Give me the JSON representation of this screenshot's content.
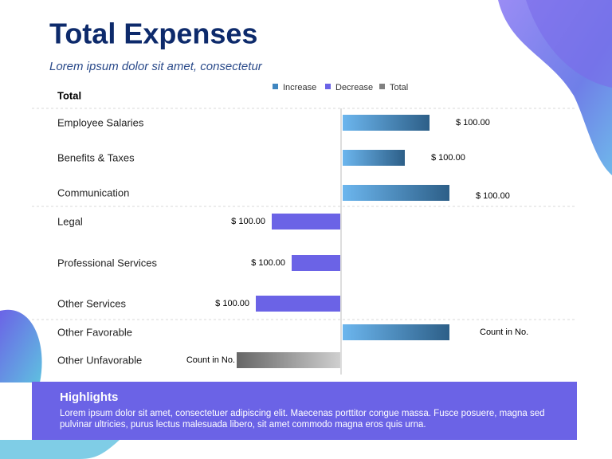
{
  "header": {
    "title": "Total Expenses",
    "subtitle": "Lorem ipsum dolor sit amet, consectetur"
  },
  "chart_data": {
    "type": "bar",
    "orientation": "horizontal",
    "group_label": "Total",
    "legend": [
      {
        "name": "Increase",
        "color": "#3f86c0"
      },
      {
        "name": "Decrease",
        "color": "#6b63e6"
      },
      {
        "name": "Total",
        "color": "#808080"
      }
    ],
    "categories": [
      "Employee Salaries",
      "Benefits & Taxes",
      "Communication",
      "Legal",
      "Professional Services",
      "Other Services",
      "Other Favorable",
      "Other Unfavorable"
    ],
    "values": [
      109,
      78,
      134,
      -86,
      -61,
      -106,
      134,
      -130
    ],
    "kinds": [
      0,
      0,
      0,
      1,
      1,
      1,
      0,
      2
    ],
    "annotations": [
      "$ 100.00",
      "$ 100.00",
      "$ 100.00",
      "$ 100.00",
      "$ 100.00",
      "$ 100.00",
      "Count in No.",
      "Count in No."
    ]
  },
  "highlights": {
    "title": "Highlights",
    "text": "Lorem ipsum dolor sit amet, consectetuer adipiscing elit. Maecenas porttitor congue massa. Fusce posuere, magna sed pulvinar ultricies, purus lectus malesuada libero, sit amet commodo magna eros quis urna."
  }
}
